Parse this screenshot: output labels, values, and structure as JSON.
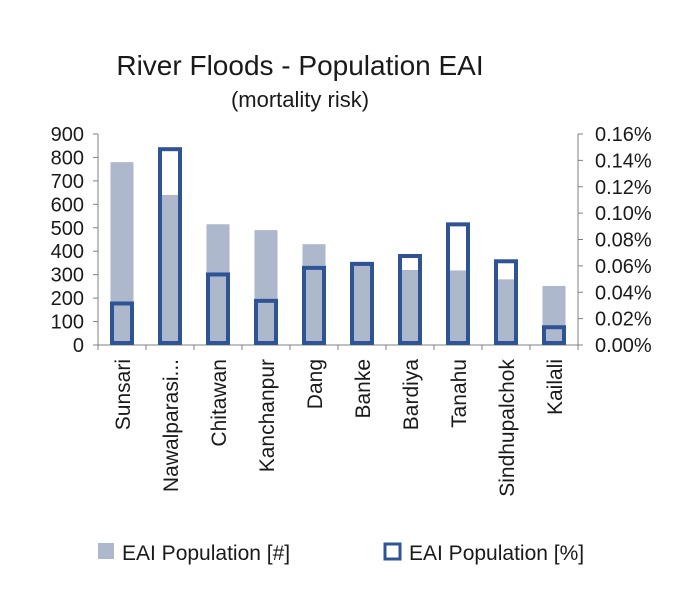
{
  "chart_data": {
    "type": "bar",
    "title": "River Floods - Population EAI",
    "subtitle": "(mortality risk)",
    "categories": [
      "Sunsari",
      "Nawalparasi...",
      "Chitawan",
      "Kanchanpur",
      "Dang",
      "Banke",
      "Bardiya",
      "Tanahu",
      "Sindhupalchok",
      "Kailali"
    ],
    "series": [
      {
        "name": "EAI Population [#]",
        "axis": "left",
        "style": "filled",
        "values": [
          780,
          640,
          515,
          490,
          430,
          355,
          320,
          318,
          280,
          252
        ]
      },
      {
        "name": "EAI Population [%]",
        "axis": "right",
        "style": "outline",
        "values": [
          0.033,
          0.15,
          0.055,
          0.035,
          0.06,
          0.063,
          0.069,
          0.093,
          0.065,
          0.015
        ]
      }
    ],
    "y_left": {
      "ylim": [
        0,
        900
      ],
      "ticks": [
        0,
        100,
        200,
        300,
        400,
        500,
        600,
        700,
        800,
        900
      ],
      "tick_labels": [
        "0",
        "100",
        "200",
        "300",
        "400",
        "500",
        "600",
        "700",
        "800",
        "900"
      ]
    },
    "y_right": {
      "ylim": [
        0,
        0.16
      ],
      "ticks": [
        0,
        0.02,
        0.04,
        0.06,
        0.08,
        0.1,
        0.12,
        0.14,
        0.16
      ],
      "tick_labels": [
        "0.00%",
        "0.02%",
        "0.04%",
        "0.06%",
        "0.08%",
        "0.10%",
        "0.12%",
        "0.14%",
        "0.16%"
      ]
    },
    "grid": false,
    "legend_placement": "bottom",
    "colors": {
      "filled_series": "#aeb8cc",
      "outline_series": "#2f5496",
      "axis": "#808080",
      "text": "#1a1a1a"
    }
  }
}
